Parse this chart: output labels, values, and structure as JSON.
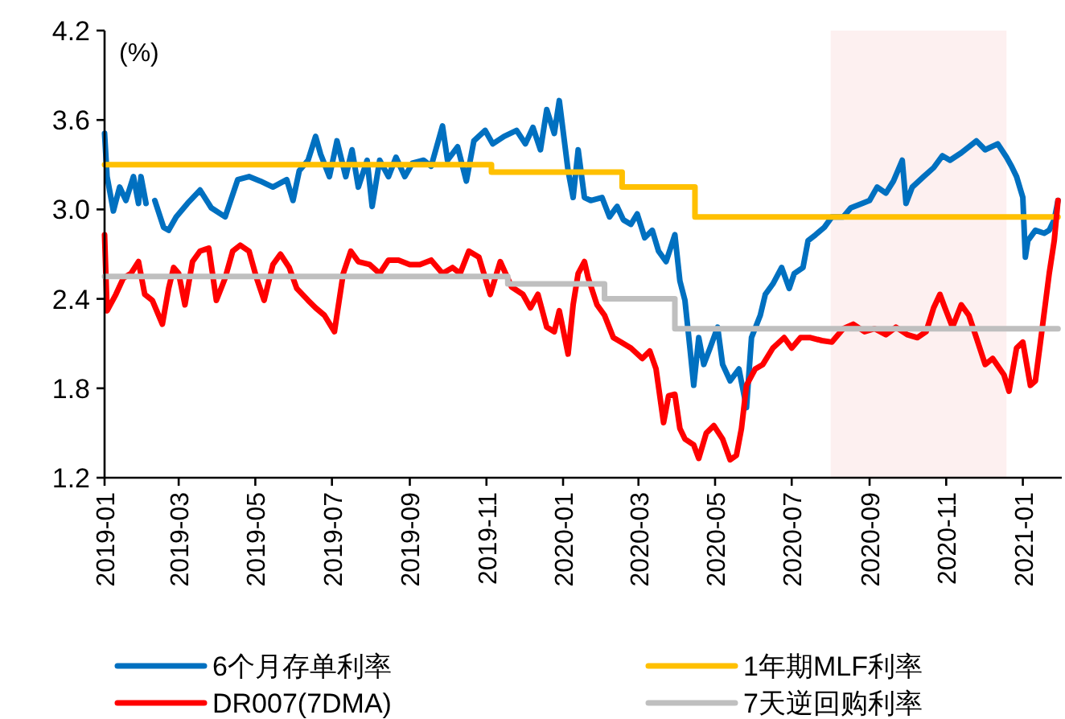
{
  "chart_data": {
    "type": "line",
    "ylabel": "(%)",
    "xlim": [
      "2019-01-01",
      "2021-02-01"
    ],
    "ylim": [
      1.2,
      4.2
    ],
    "xticks": [
      "2019-01",
      "2019-03",
      "2019-05",
      "2019-07",
      "2019-09",
      "2019-11",
      "2020-01",
      "2020-03",
      "2020-05",
      "2020-07",
      "2020-09",
      "2020-11",
      "2021-01"
    ],
    "yticks": [
      1.2,
      1.8,
      2.4,
      {
        "value": 3,
        "label": "3.0"
      },
      3.6,
      4.2
    ],
    "grid": false,
    "legend": "bottom",
    "marker": "none",
    "line_style": "solid",
    "bands": [
      {
        "axis": "x",
        "from": "2020-08-01",
        "to": "2020-12-19",
        "color": "#fdf0f0"
      }
    ],
    "series": [
      {
        "name": "6个月存单利率",
        "color": "#0070c0",
        "x": [
          "2019-01-01",
          "2019-01-03",
          "2019-01-08",
          "2019-01-13",
          "2019-01-18",
          "2019-01-24",
          "2019-01-28",
          "2019-01-30",
          "2019-02-03",
          "2019-02-06",
          "2019-02-10",
          "2019-02-17",
          "2019-02-21",
          "2019-02-27",
          "2019-03-08",
          "2019-03-18",
          "2019-03-27",
          "2019-04-07",
          "2019-04-17",
          "2019-04-26",
          "2019-05-05",
          "2019-05-15",
          "2019-05-26",
          "2019-05-31",
          "2019-06-05",
          "2019-06-12",
          "2019-06-18",
          "2019-06-22",
          "2019-06-29",
          "2019-07-05",
          "2019-07-12",
          "2019-07-17",
          "2019-07-22",
          "2019-07-29",
          "2019-08-02",
          "2019-08-08",
          "2019-08-15",
          "2019-08-21",
          "2019-08-28",
          "2019-09-03",
          "2019-09-12",
          "2019-09-18",
          "2019-09-27",
          "2019-10-01",
          "2019-10-09",
          "2019-10-16",
          "2019-10-22",
          "2019-10-31",
          "2019-11-06",
          "2019-11-15",
          "2019-11-25",
          "2019-12-02",
          "2019-12-08",
          "2019-12-14",
          "2019-12-19",
          "2019-12-25",
          "2019-12-29",
          "2020-01-05",
          "2020-01-09",
          "2020-01-13",
          "2020-01-18",
          "2020-01-23",
          "2020-02-01",
          "2020-02-07",
          "2020-02-13",
          "2020-02-18",
          "2020-02-24",
          "2020-02-29",
          "2020-03-06",
          "2020-03-12",
          "2020-03-17",
          "2020-03-23",
          "2020-03-30",
          "2020-04-03",
          "2020-04-07",
          "2020-04-11",
          "2020-04-14",
          "2020-04-18",
          "2020-04-22",
          "2020-04-27",
          "2020-05-03",
          "2020-05-07",
          "2020-05-13",
          "2020-05-20",
          "2020-05-26",
          "2020-05-30",
          "2020-06-06",
          "2020-06-10",
          "2020-06-16",
          "2020-06-23",
          "2020-06-29",
          "2020-07-03",
          "2020-07-10",
          "2020-07-14",
          "2020-07-20",
          "2020-07-27",
          "2020-08-02",
          "2020-08-11",
          "2020-08-17",
          "2020-08-26",
          "2020-09-01",
          "2020-09-07",
          "2020-09-14",
          "2020-09-20",
          "2020-09-27",
          "2020-09-30",
          "2020-10-05",
          "2020-10-14",
          "2020-10-22",
          "2020-10-29",
          "2020-11-04",
          "2020-11-13",
          "2020-11-25",
          "2020-12-02",
          "2020-12-12",
          "2020-12-19",
          "2020-12-23",
          "2020-12-27",
          "2021-01-01",
          "2021-01-03",
          "2021-01-05",
          "2021-01-11",
          "2021-01-18",
          "2021-01-22",
          "2021-01-26",
          "2021-01-29"
        ],
        "values": [
          3.51,
          3.22,
          2.99,
          3.15,
          3.06,
          3.22,
          3.04,
          3.22,
          3.04,
          null,
          3.06,
          2.88,
          2.86,
          2.95,
          3.04,
          3.13,
          3.01,
          2.95,
          3.2,
          3.22,
          3.19,
          3.15,
          3.2,
          3.06,
          3.26,
          3.33,
          3.49,
          3.37,
          3.22,
          3.46,
          3.22,
          3.4,
          3.15,
          3.33,
          3.02,
          3.33,
          3.22,
          3.35,
          3.22,
          3.31,
          3.33,
          3.29,
          3.56,
          3.33,
          3.42,
          3.19,
          3.46,
          3.53,
          3.44,
          3.49,
          3.53,
          3.44,
          3.55,
          3.4,
          3.67,
          3.51,
          3.73,
          3.26,
          3.08,
          3.4,
          3.08,
          3.06,
          3.08,
          2.95,
          3.02,
          2.93,
          2.9,
          2.97,
          2.81,
          2.86,
          2.72,
          2.65,
          2.83,
          2.52,
          2.39,
          2.07,
          1.82,
          2.14,
          1.96,
          2.07,
          2.21,
          1.96,
          1.85,
          1.93,
          1.67,
          2.14,
          2.29,
          2.43,
          2.5,
          2.61,
          2.47,
          2.57,
          2.61,
          2.79,
          2.83,
          2.88,
          2.95,
          2.95,
          3.01,
          3.04,
          3.06,
          3.15,
          3.11,
          3.19,
          3.33,
          3.04,
          3.15,
          3.22,
          3.28,
          3.36,
          3.33,
          3.38,
          3.46,
          3.4,
          3.44,
          3.35,
          3.29,
          3.22,
          3.08,
          2.68,
          2.79,
          2.86,
          2.84,
          2.86,
          2.93,
          3.06
        ]
      },
      {
        "name": "1年期MLF利率",
        "color": "#ffc000",
        "type": "step",
        "x": [
          "2019-01-01",
          "2019-11-05",
          "2020-02-17",
          "2020-04-15",
          "2021-01-29"
        ],
        "values": [
          3.3,
          3.25,
          3.15,
          2.95,
          2.95
        ]
      },
      {
        "name": "DR007(7DMA)",
        "color": "#ff0000",
        "x": [
          "2019-01-01",
          "2019-01-03",
          "2019-01-10",
          "2019-01-16",
          "2019-01-22",
          "2019-01-28",
          "2019-02-02",
          "2019-02-08",
          "2019-02-16",
          "2019-02-21",
          "2019-02-25",
          "2019-03-01",
          "2019-03-06",
          "2019-03-12",
          "2019-03-18",
          "2019-03-25",
          "2019-03-31",
          "2019-04-07",
          "2019-04-13",
          "2019-04-19",
          "2019-04-26",
          "2019-05-02",
          "2019-05-08",
          "2019-05-15",
          "2019-05-21",
          "2019-05-28",
          "2019-06-03",
          "2019-06-12",
          "2019-06-18",
          "2019-06-25",
          "2019-07-03",
          "2019-07-10",
          "2019-07-16",
          "2019-07-22",
          "2019-07-31",
          "2019-08-08",
          "2019-08-15",
          "2019-08-23",
          "2019-09-01",
          "2019-09-09",
          "2019-09-18",
          "2019-09-27",
          "2019-10-05",
          "2019-10-11",
          "2019-10-18",
          "2019-10-26",
          "2019-11-04",
          "2019-11-12",
          "2019-11-21",
          "2019-11-30",
          "2019-12-06",
          "2019-12-12",
          "2019-12-19",
          "2019-12-25",
          "2019-12-29",
          "2020-01-05",
          "2020-01-09",
          "2020-01-13",
          "2020-01-18",
          "2020-01-21",
          "2020-01-28",
          "2020-02-03",
          "2020-02-10",
          "2020-02-16",
          "2020-02-24",
          "2020-03-04",
          "2020-03-10",
          "2020-03-15",
          "2020-03-21",
          "2020-03-25",
          "2020-03-30",
          "2020-04-03",
          "2020-04-07",
          "2020-04-14",
          "2020-04-18",
          "2020-04-24",
          "2020-04-30",
          "2020-05-07",
          "2020-05-13",
          "2020-05-18",
          "2020-05-22",
          "2020-05-26",
          "2020-06-02",
          "2020-06-08",
          "2020-06-16",
          "2020-06-25",
          "2020-07-01",
          "2020-07-08",
          "2020-07-16",
          "2020-07-25",
          "2020-08-02",
          "2020-08-11",
          "2020-08-19",
          "2020-08-28",
          "2020-09-05",
          "2020-09-14",
          "2020-09-22",
          "2020-10-01",
          "2020-10-09",
          "2020-10-16",
          "2020-10-22",
          "2020-10-27",
          "2020-10-31",
          "2020-11-06",
          "2020-11-13",
          "2020-11-19",
          "2020-11-25",
          "2020-12-02",
          "2020-12-08",
          "2020-12-17",
          "2020-12-21",
          "2020-12-27",
          "2021-01-01",
          "2021-01-07",
          "2021-01-11",
          "2021-01-15",
          "2021-01-22",
          "2021-01-26",
          "2021-01-29"
        ],
        "values": [
          2.83,
          2.32,
          2.43,
          2.54,
          2.57,
          2.65,
          2.43,
          2.39,
          2.23,
          2.47,
          2.61,
          2.57,
          2.36,
          2.65,
          2.72,
          2.74,
          2.39,
          2.54,
          2.72,
          2.76,
          2.72,
          2.54,
          2.39,
          2.63,
          2.7,
          2.61,
          2.47,
          2.39,
          2.34,
          2.29,
          2.18,
          2.57,
          2.72,
          2.65,
          2.63,
          2.57,
          2.66,
          2.66,
          2.63,
          2.63,
          2.66,
          2.57,
          2.61,
          2.57,
          2.72,
          2.68,
          2.43,
          2.65,
          2.48,
          2.43,
          2.34,
          2.43,
          2.21,
          2.18,
          2.32,
          2.03,
          2.36,
          2.57,
          2.65,
          2.54,
          2.36,
          2.29,
          2.14,
          2.11,
          2.07,
          2.0,
          2.05,
          1.93,
          1.57,
          1.75,
          1.76,
          1.53,
          1.46,
          1.42,
          1.33,
          1.5,
          1.55,
          1.46,
          1.32,
          1.35,
          1.53,
          1.82,
          1.93,
          1.96,
          2.07,
          2.14,
          2.07,
          2.14,
          2.14,
          2.12,
          2.11,
          2.2,
          2.23,
          2.18,
          2.2,
          2.16,
          2.21,
          2.16,
          2.14,
          2.18,
          2.34,
          2.43,
          2.34,
          2.21,
          2.36,
          2.29,
          2.14,
          1.96,
          2.0,
          1.89,
          1.78,
          2.07,
          2.11,
          1.82,
          1.85,
          2.11,
          2.57,
          2.79,
          3.06
        ]
      },
      {
        "name": "7天逆回购利率",
        "color": "#bfbfbf",
        "type": "step",
        "x": [
          "2019-01-01",
          "2019-11-18",
          "2020-02-03",
          "2020-03-30",
          "2021-01-29"
        ],
        "values": [
          2.55,
          2.5,
          2.4,
          2.2,
          2.2
        ]
      }
    ]
  }
}
